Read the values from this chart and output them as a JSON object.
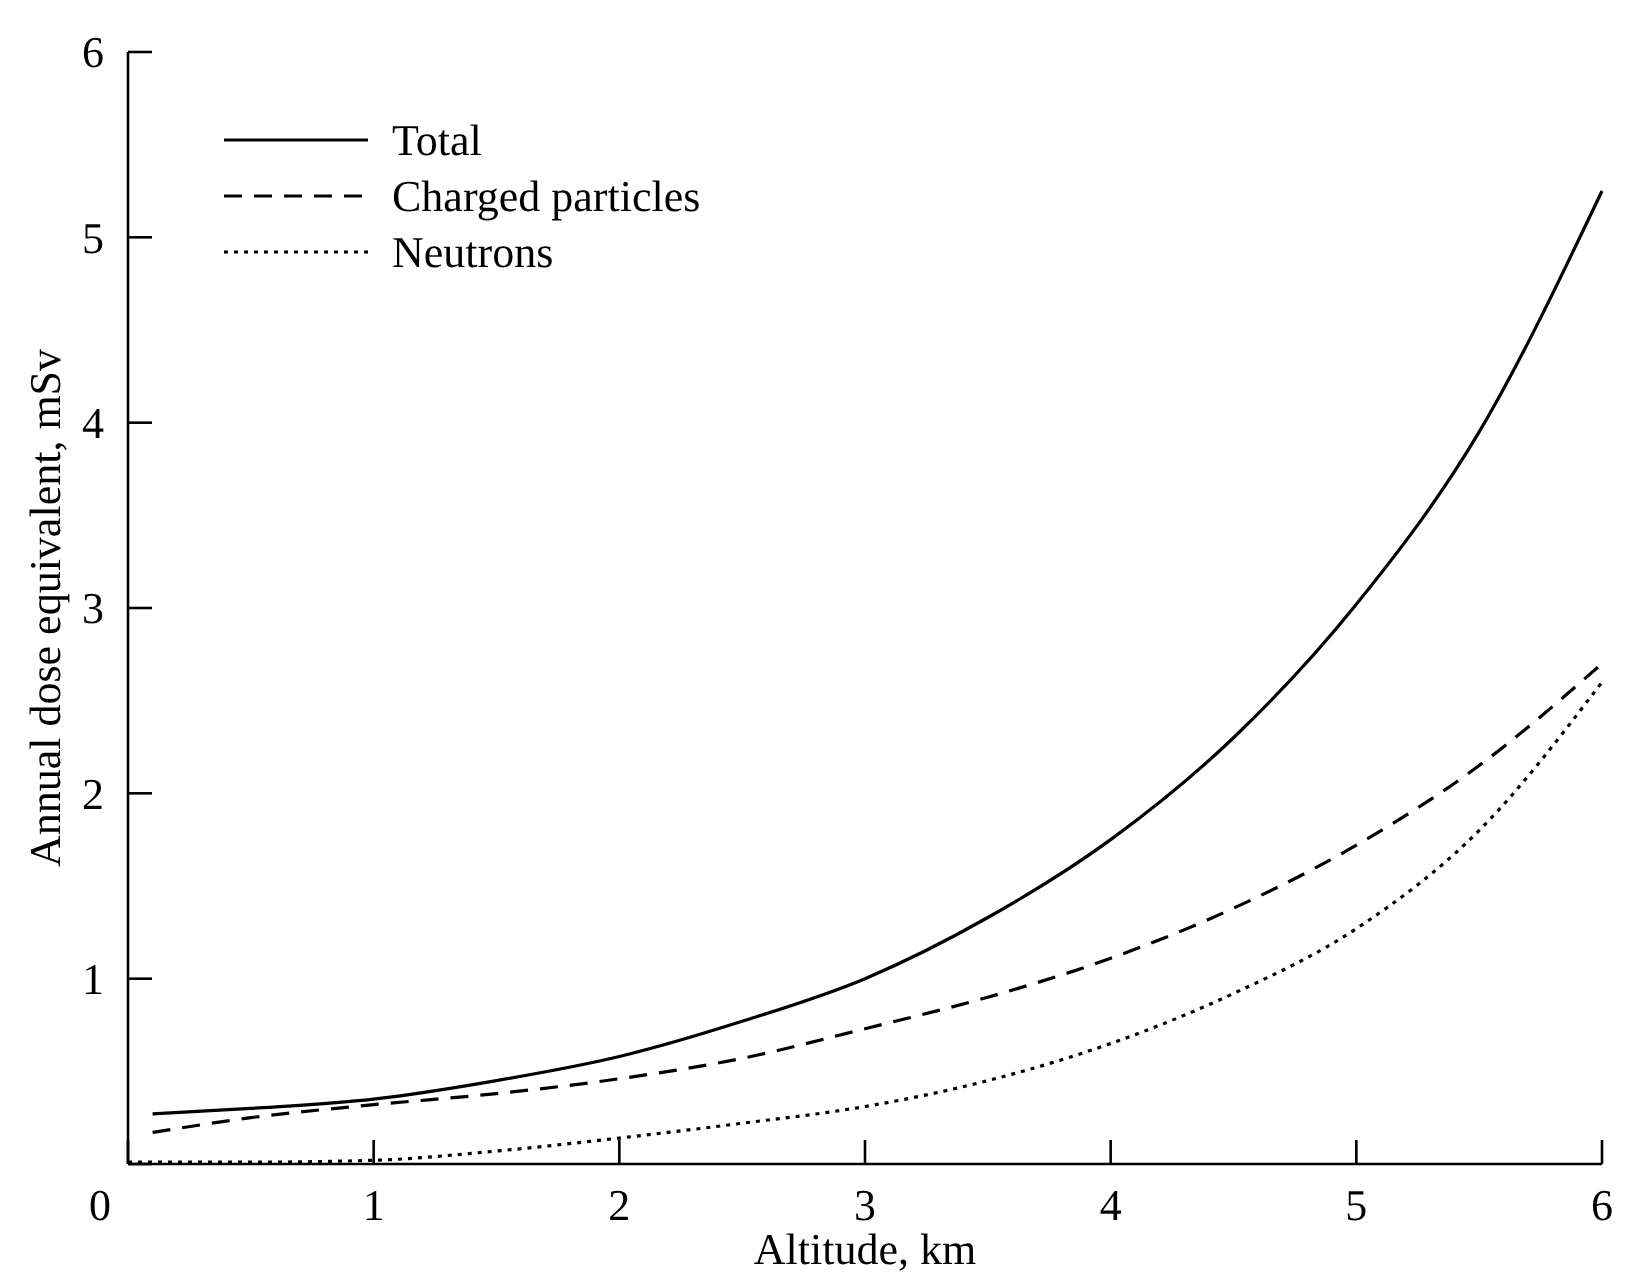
{
  "chart_data": {
    "type": "line",
    "xlabel": "Altitude, km",
    "ylabel": "Annual dose equivalent, mSv",
    "xlim": [
      0,
      6
    ],
    "ylim": [
      0,
      6
    ],
    "xticks": [
      0,
      1,
      2,
      3,
      4,
      5,
      6
    ],
    "yticks": [
      {
        "value": 0,
        "label": null
      },
      1,
      2,
      3,
      4,
      5,
      6
    ],
    "grid": false,
    "legend": "top left",
    "series": [
      {
        "name": "Total",
        "color": "#000000",
        "line_style": "solid",
        "x": [
          0.1,
          0.5,
          1,
          1.5,
          2,
          2.5,
          3,
          3.5,
          4,
          4.5,
          5,
          5.5,
          6
        ],
        "values": [
          0.27,
          0.3,
          0.35,
          0.45,
          0.58,
          0.77,
          1.0,
          1.33,
          1.75,
          2.3,
          3.02,
          3.95,
          5.25
        ]
      },
      {
        "name": "Charged particles",
        "color": "#000000",
        "line_style": "dashed",
        "x": [
          0.1,
          0.5,
          1,
          1.5,
          2,
          2.5,
          3,
          3.5,
          4,
          4.5,
          5,
          5.5,
          6
        ],
        "values": [
          0.17,
          0.25,
          0.32,
          0.38,
          0.46,
          0.57,
          0.73,
          0.9,
          1.11,
          1.38,
          1.72,
          2.15,
          2.7
        ]
      },
      {
        "name": "Neutrons",
        "color": "#000000",
        "line_style": "dotted",
        "x": [
          0,
          0.5,
          1,
          1.5,
          2,
          2.5,
          3,
          3.5,
          4,
          4.5,
          5,
          5.5,
          6
        ],
        "values": [
          0.01,
          0.01,
          0.02,
          0.07,
          0.14,
          0.22,
          0.31,
          0.45,
          0.65,
          0.92,
          1.27,
          1.8,
          2.6
        ]
      }
    ]
  }
}
